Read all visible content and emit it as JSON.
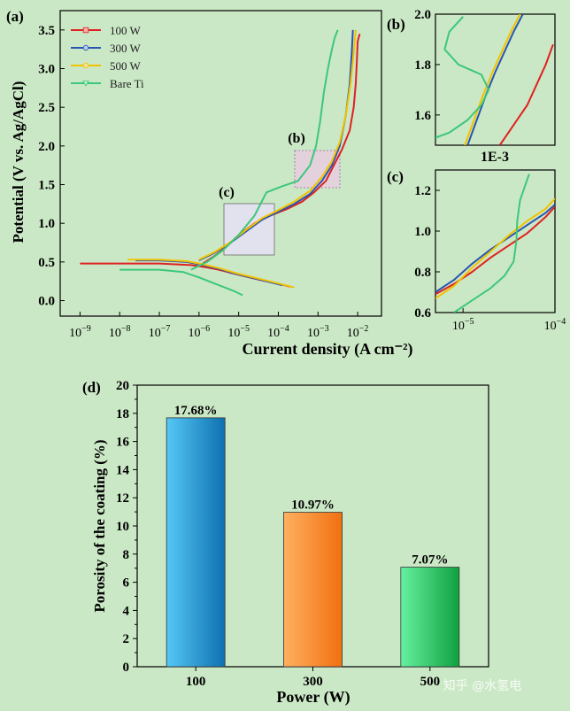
{
  "background_color": "#cbe8c6",
  "watermark": "知乎 @水氢电",
  "series_colors": {
    "100 W": "#e02020",
    "300 W": "#2a55b0",
    "500 W": "#f2c200",
    "Bare Ti": "#3cc77a"
  },
  "chart_data": [
    {
      "panel": "(a)",
      "type": "line",
      "title": "",
      "xlabel": "Current density (A cm⁻²)",
      "ylabel": "Potential (V vs. Ag/AgCl)",
      "x_scale": "log",
      "xlim_log10": [
        -9.5,
        -1.4
      ],
      "ylim": [
        -0.2,
        3.75
      ],
      "x_ticks_exp": [
        -9,
        -8,
        -7,
        -6,
        -5,
        -4,
        -3,
        -2
      ],
      "x_tick_base": "10",
      "y_ticks": [
        "0.0",
        "0.5",
        "1.0",
        "1.5",
        "2.0",
        "2.5",
        "3.0",
        "3.5"
      ],
      "legend": [
        "100 W",
        "300 W",
        "500 W",
        "Bare Ti"
      ],
      "legend_position": "top-left",
      "inset_labels": [
        "(b)",
        "(c)"
      ],
      "series": [
        {
          "name": "100 W",
          "cathodic_x": [
            -9.0,
            -7.0,
            -6.2,
            -5.8,
            -5.5,
            -5.2,
            -4.8,
            -4.4,
            -4.0,
            -3.7
          ],
          "cathodic_y": [
            0.48,
            0.48,
            0.46,
            0.43,
            0.4,
            0.36,
            0.31,
            0.26,
            0.22,
            0.18
          ],
          "anodic_x": [
            -5.9,
            -5.6,
            -5.3,
            -5.0,
            -4.6,
            -4.2,
            -3.8,
            -3.4,
            -3.1,
            -2.8,
            -2.6,
            -2.4,
            -2.2,
            -2.1,
            -2.05,
            -2.02,
            -2.0,
            -1.95
          ],
          "anodic_y": [
            0.48,
            0.58,
            0.7,
            0.85,
            1.0,
            1.1,
            1.18,
            1.28,
            1.4,
            1.55,
            1.75,
            1.95,
            2.2,
            2.5,
            2.8,
            3.1,
            3.35,
            3.45
          ]
        },
        {
          "name": "300 W",
          "cathodic_x": [
            -7.6,
            -7.0,
            -6.3,
            -5.9,
            -5.5,
            -5.1,
            -4.7,
            -4.3,
            -3.9
          ],
          "cathodic_y": [
            0.52,
            0.52,
            0.5,
            0.46,
            0.41,
            0.35,
            0.3,
            0.25,
            0.2
          ],
          "anodic_x": [
            -6.0,
            -5.6,
            -5.2,
            -4.8,
            -4.4,
            -4.0,
            -3.6,
            -3.2,
            -2.9,
            -2.65,
            -2.45,
            -2.3,
            -2.2,
            -2.15,
            -2.12
          ],
          "anodic_y": [
            0.52,
            0.62,
            0.75,
            0.9,
            1.05,
            1.15,
            1.25,
            1.38,
            1.55,
            1.75,
            2.0,
            2.4,
            2.8,
            3.2,
            3.5
          ]
        },
        {
          "name": "500 W",
          "cathodic_x": [
            -7.8,
            -7.0,
            -6.3,
            -5.9,
            -5.5,
            -5.1,
            -4.7,
            -4.3,
            -3.9,
            -3.6
          ],
          "cathodic_y": [
            0.53,
            0.53,
            0.51,
            0.47,
            0.42,
            0.36,
            0.31,
            0.26,
            0.21,
            0.17
          ],
          "anodic_x": [
            -6.0,
            -5.6,
            -5.2,
            -4.8,
            -4.4,
            -4.0,
            -3.6,
            -3.2,
            -2.9,
            -2.65,
            -2.45,
            -2.3,
            -2.18,
            -2.1,
            -2.05
          ],
          "anodic_y": [
            0.53,
            0.63,
            0.76,
            0.92,
            1.07,
            1.17,
            1.28,
            1.42,
            1.6,
            1.8,
            2.05,
            2.4,
            2.8,
            3.2,
            3.5
          ]
        },
        {
          "name": "Bare Ti",
          "cathodic_x": [
            -8.0,
            -7.0,
            -6.4,
            -6.0,
            -5.7,
            -5.4,
            -5.1,
            -4.9
          ],
          "cathodic_y": [
            0.4,
            0.4,
            0.37,
            0.3,
            0.24,
            0.18,
            0.12,
            0.07
          ],
          "anodic_x": [
            -6.2,
            -5.8,
            -5.4,
            -5.0,
            -4.6,
            -4.3,
            -3.9,
            -3.5,
            -3.2,
            -3.05,
            -2.95,
            -2.85,
            -2.75,
            -2.65,
            -2.58,
            -2.5
          ],
          "anodic_y": [
            0.4,
            0.5,
            0.65,
            0.85,
            1.1,
            1.4,
            1.48,
            1.55,
            1.75,
            2.0,
            2.3,
            2.7,
            3.0,
            3.25,
            3.4,
            3.5
          ]
        }
      ]
    },
    {
      "panel": "(b)",
      "type": "line",
      "xlabel": "1E-3",
      "xlim_log10": [
        -3.7,
        -2.4
      ],
      "ylim": [
        1.48,
        2.0
      ],
      "y_ticks": [
        "1.6",
        "1.8",
        "2.0"
      ],
      "series": [
        {
          "name": "100 W",
          "x": [
            -3.0,
            -2.85,
            -2.7,
            -2.6,
            -2.5,
            -2.42
          ],
          "y": [
            1.48,
            1.56,
            1.64,
            1.72,
            1.8,
            1.88
          ]
        },
        {
          "name": "300 W",
          "x": [
            -3.35,
            -3.25,
            -3.15,
            -3.05,
            -2.95,
            -2.85,
            -2.75
          ],
          "y": [
            1.48,
            1.58,
            1.68,
            1.77,
            1.85,
            1.93,
            2.0
          ]
        },
        {
          "name": "500 W",
          "x": [
            -3.38,
            -3.28,
            -3.18,
            -3.08,
            -2.98,
            -2.88,
            -2.78
          ],
          "y": [
            1.48,
            1.58,
            1.68,
            1.77,
            1.85,
            1.93,
            2.0
          ]
        },
        {
          "name": "Bare Ti",
          "x": [
            -3.7,
            -3.55,
            -3.35,
            -3.2,
            -3.12,
            -3.2,
            -3.45,
            -3.6,
            -3.55,
            -3.4
          ],
          "y": [
            1.51,
            1.53,
            1.58,
            1.64,
            1.7,
            1.76,
            1.8,
            1.86,
            1.93,
            1.99
          ]
        }
      ]
    },
    {
      "panel": "(c)",
      "type": "line",
      "xlim_log10": [
        -5.3,
        -4.0
      ],
      "x_ticks_exp": [
        -5,
        -4
      ],
      "x_tick_base": "10",
      "ylim": [
        0.6,
        1.3
      ],
      "y_ticks": [
        "0.6",
        "0.8",
        "1.0",
        "1.2"
      ],
      "series": [
        {
          "name": "100 W",
          "x": [
            -5.3,
            -5.1,
            -4.9,
            -4.7,
            -4.5,
            -4.3,
            -4.1,
            -4.0
          ],
          "y": [
            0.69,
            0.74,
            0.8,
            0.87,
            0.93,
            0.99,
            1.07,
            1.12
          ]
        },
        {
          "name": "300 W",
          "x": [
            -5.3,
            -5.1,
            -4.9,
            -4.7,
            -4.5,
            -4.3,
            -4.1,
            -4.0
          ],
          "y": [
            0.7,
            0.76,
            0.84,
            0.91,
            0.97,
            1.03,
            1.09,
            1.13
          ]
        },
        {
          "name": "500 W",
          "x": [
            -5.3,
            -5.1,
            -4.9,
            -4.7,
            -4.5,
            -4.3,
            -4.1,
            -4.0
          ],
          "y": [
            0.67,
            0.73,
            0.82,
            0.9,
            0.98,
            1.05,
            1.11,
            1.16
          ]
        },
        {
          "name": "Bare Ti",
          "x": [
            -5.1,
            -4.9,
            -4.7,
            -4.55,
            -4.45,
            -4.42,
            -4.41,
            -4.38,
            -4.32,
            -4.28
          ],
          "y": [
            0.6,
            0.66,
            0.72,
            0.78,
            0.85,
            0.95,
            1.05,
            1.15,
            1.23,
            1.28
          ]
        }
      ]
    },
    {
      "panel": "(d)",
      "type": "bar",
      "title": "",
      "xlabel": "Power (W)",
      "ylabel": "Porosity of the coating (%)",
      "ylim": [
        0,
        20
      ],
      "y_ticks": [
        "0",
        "2",
        "4",
        "6",
        "8",
        "10",
        "12",
        "14",
        "16",
        "18",
        "20"
      ],
      "categories": [
        "100",
        "300",
        "500"
      ],
      "values": [
        17.68,
        10.97,
        7.07
      ],
      "data_labels": [
        "17.68%",
        "10.97%",
        "7.07%"
      ],
      "bar_colors": [
        [
          "#55c8f5",
          "#0e70b0"
        ],
        [
          "#ffb060",
          "#f07010"
        ],
        [
          "#66f0a0",
          "#10a040"
        ]
      ]
    }
  ]
}
